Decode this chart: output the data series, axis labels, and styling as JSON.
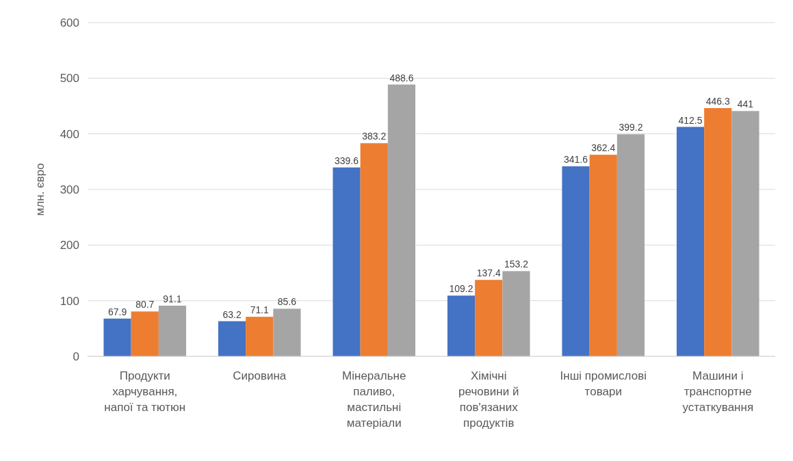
{
  "chart_data": {
    "type": "bar",
    "ylabel": "млн. євро",
    "categories": [
      "Продукти харчування, напої та тютюн",
      "Сировина",
      "Мінеральне паливо, мастильні матеріали",
      "Хімічні речовини й пов'язаних продуктів",
      "Інші промислові товари",
      "Машини і транспортне устаткування"
    ],
    "series": [
      {
        "color": "#4472c4",
        "values": [
          67.9,
          63.2,
          339.6,
          109.2,
          341.6,
          412.5
        ]
      },
      {
        "color": "#ed7d31",
        "values": [
          80.7,
          71.1,
          383.2,
          137.4,
          362.4,
          446.3
        ]
      },
      {
        "color": "#a5a5a5",
        "values": [
          91.1,
          85.6,
          488.6,
          153.2,
          399.2,
          441
        ]
      }
    ],
    "ylim": [
      0,
      600
    ],
    "yticks": [
      0,
      100,
      200,
      300,
      400,
      500,
      600
    ],
    "grid": "y",
    "data_labels": true
  }
}
